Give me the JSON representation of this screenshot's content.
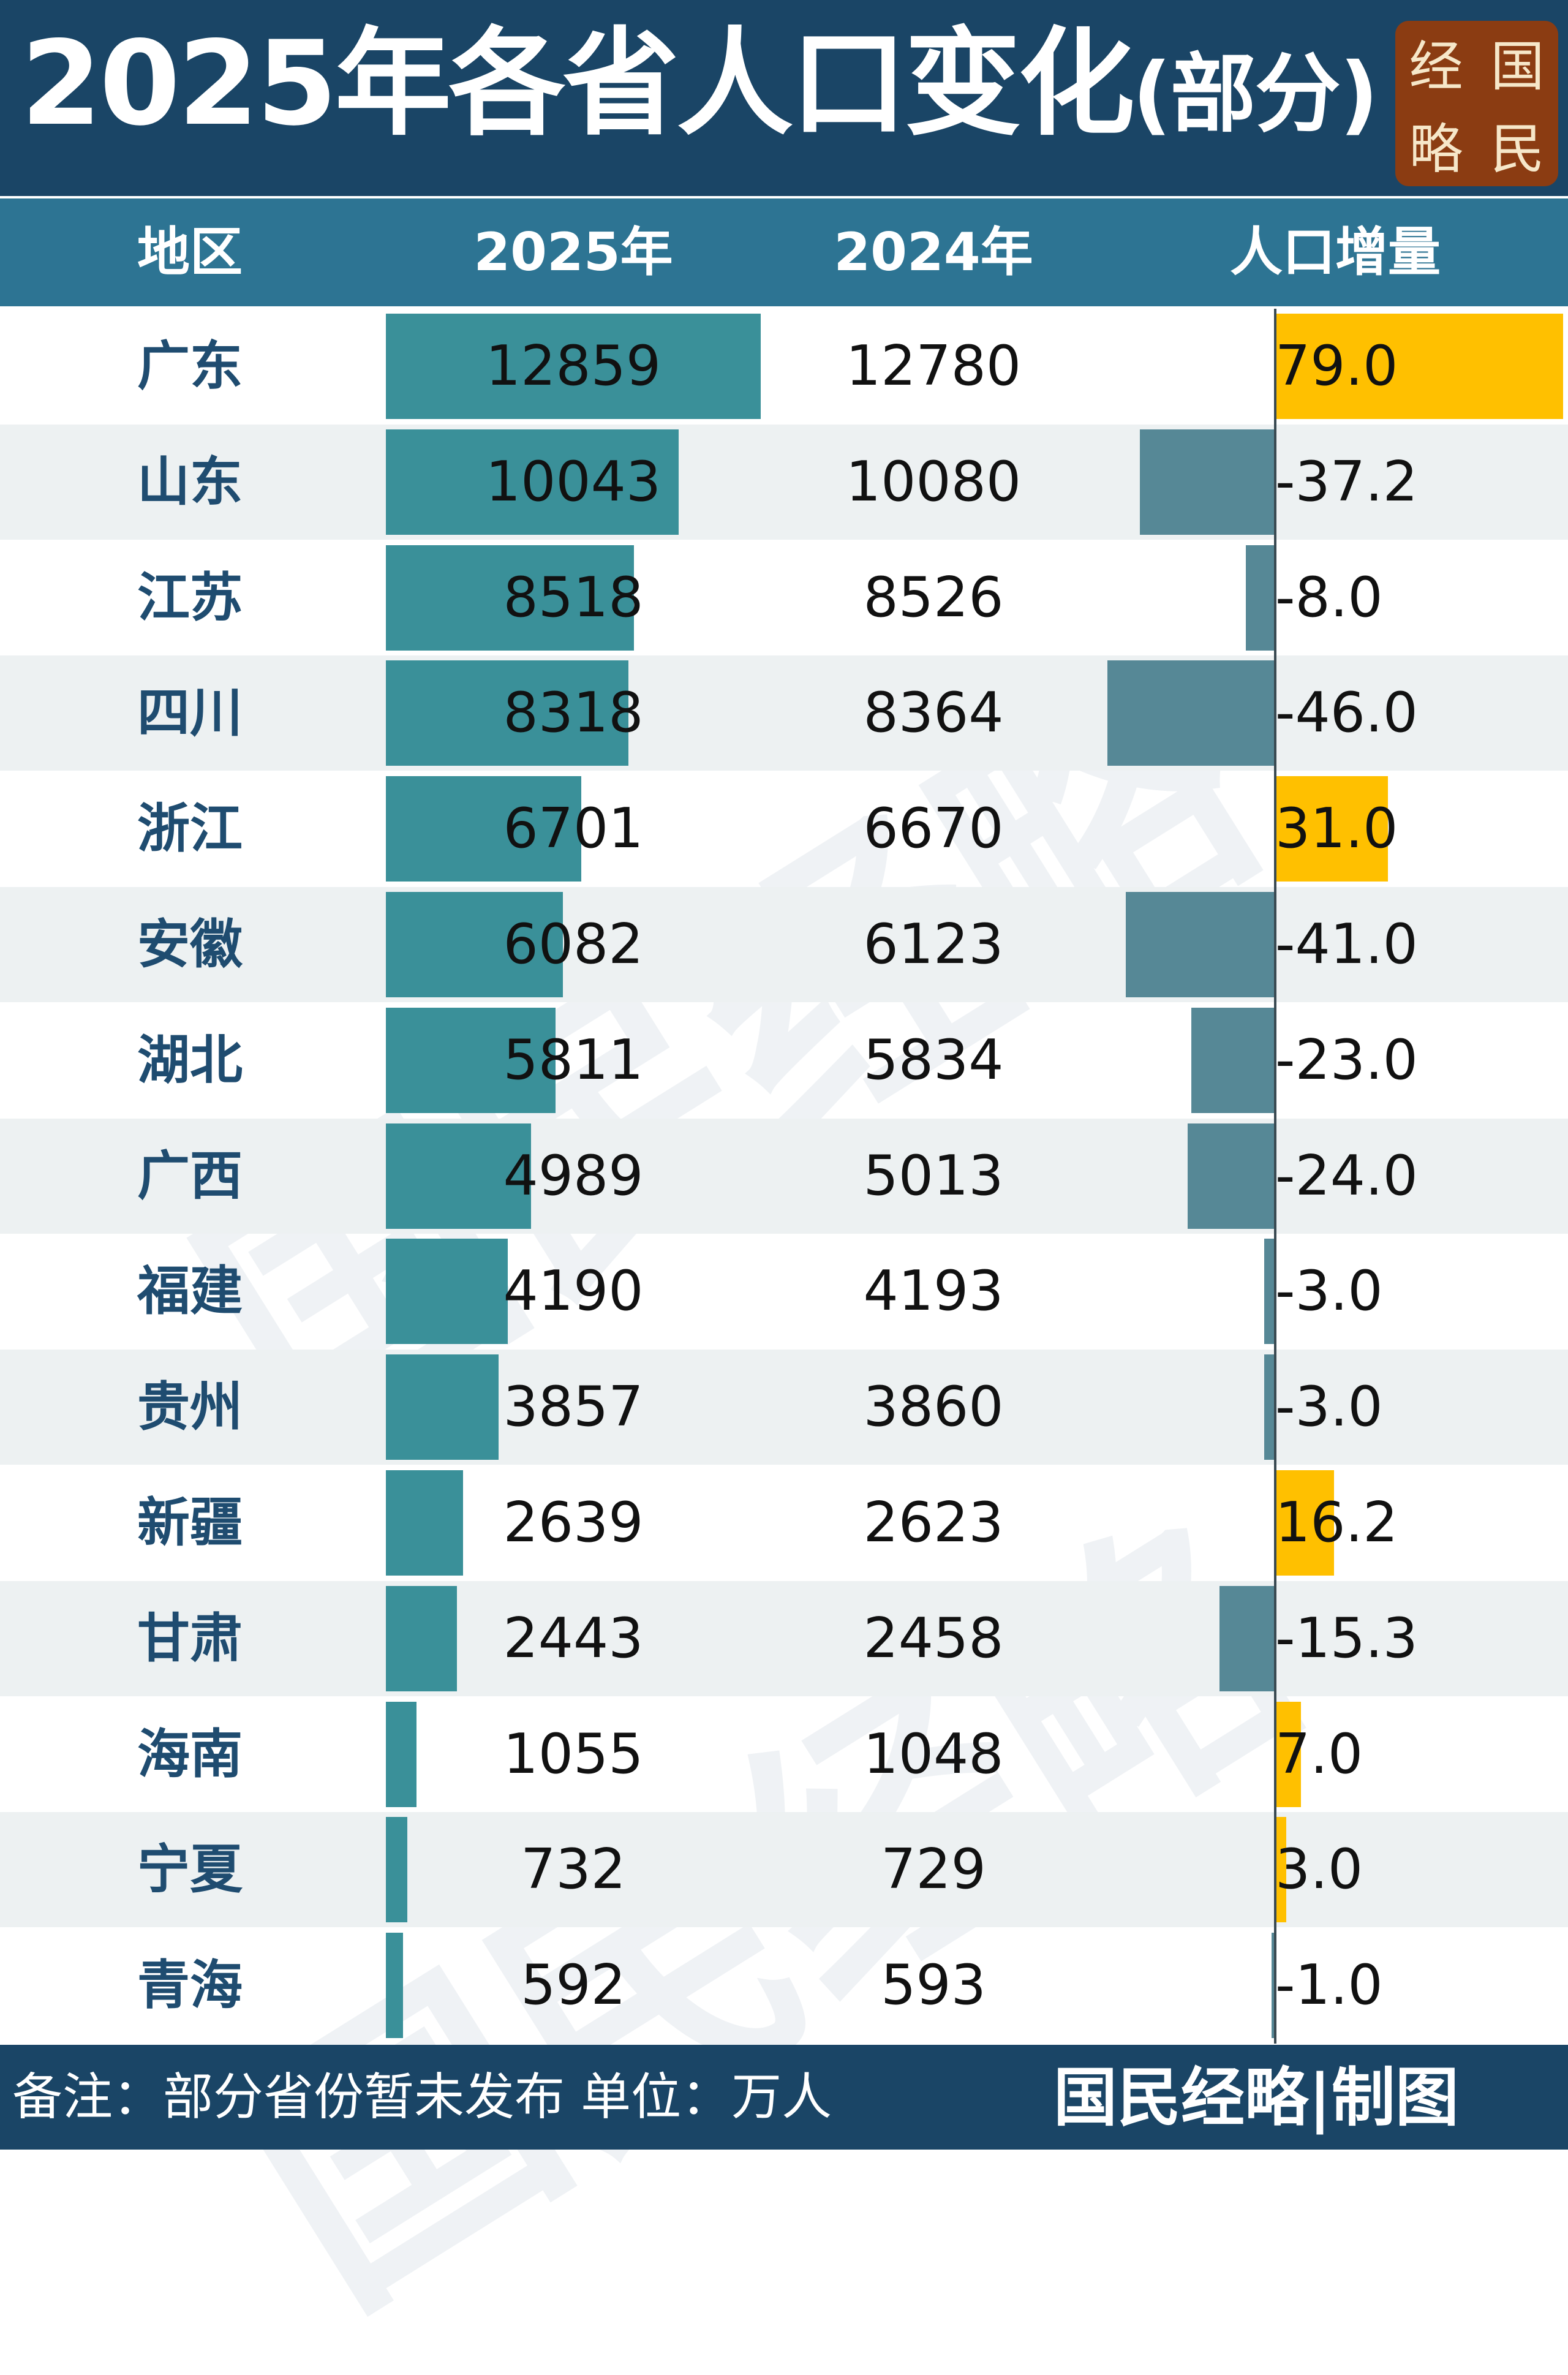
{
  "header": {
    "title_main": "2025年各省人口变化",
    "title_sub": "(部分)",
    "logo_chars": [
      "经",
      "国",
      "略",
      "民"
    ]
  },
  "columns": [
    "地区",
    "2025年",
    "2024年",
    "人口增量"
  ],
  "chart_data": {
    "type": "table",
    "title": "2025年各省人口变化(部分)",
    "columns": [
      "地区",
      "2025年",
      "2024年",
      "人口增量"
    ],
    "rows": [
      {
        "region": "广东",
        "pop2025": "12859",
        "pop2024": "12780",
        "change": "79.0"
      },
      {
        "region": "山东",
        "pop2025": "10043",
        "pop2024": "10080",
        "change": "-37.2"
      },
      {
        "region": "江苏",
        "pop2025": "8518",
        "pop2024": "8526",
        "change": "-8.0"
      },
      {
        "region": "四川",
        "pop2025": "8318",
        "pop2024": "8364",
        "change": "-46.0"
      },
      {
        "region": "浙江",
        "pop2025": "6701",
        "pop2024": "6670",
        "change": "31.0"
      },
      {
        "region": "安徽",
        "pop2025": "6082",
        "pop2024": "6123",
        "change": "-41.0"
      },
      {
        "region": "湖北",
        "pop2025": "5811",
        "pop2024": "5834",
        "change": "-23.0"
      },
      {
        "region": "广西",
        "pop2025": "4989",
        "pop2024": "5013",
        "change": "-24.0"
      },
      {
        "region": "福建",
        "pop2025": "4190",
        "pop2024": "4193",
        "change": "-3.0"
      },
      {
        "region": "贵州",
        "pop2025": "3857",
        "pop2024": "3860",
        "change": "-3.0"
      },
      {
        "region": "新疆",
        "pop2025": "2639",
        "pop2024": "2623",
        "change": "16.2"
      },
      {
        "region": "甘肃",
        "pop2025": "2443",
        "pop2024": "2458",
        "change": "-15.3"
      },
      {
        "region": "海南",
        "pop2025": "1055",
        "pop2024": "1048",
        "change": "7.0"
      },
      {
        "region": "宁夏",
        "pop2025": "732",
        "pop2024": "729",
        "change": "3.0"
      },
      {
        "region": "青海",
        "pop2025": "592",
        "pop2024": "593",
        "change": "-1.0"
      }
    ],
    "colors": {
      "bar_2025": "#3a9099",
      "increase": "#ffc000",
      "decrease": "#568896"
    }
  },
  "watermark": "国民经略",
  "footer": {
    "note": "备注：部分省份暂未发布  单位：万人",
    "credit": "国民经略|制图"
  }
}
